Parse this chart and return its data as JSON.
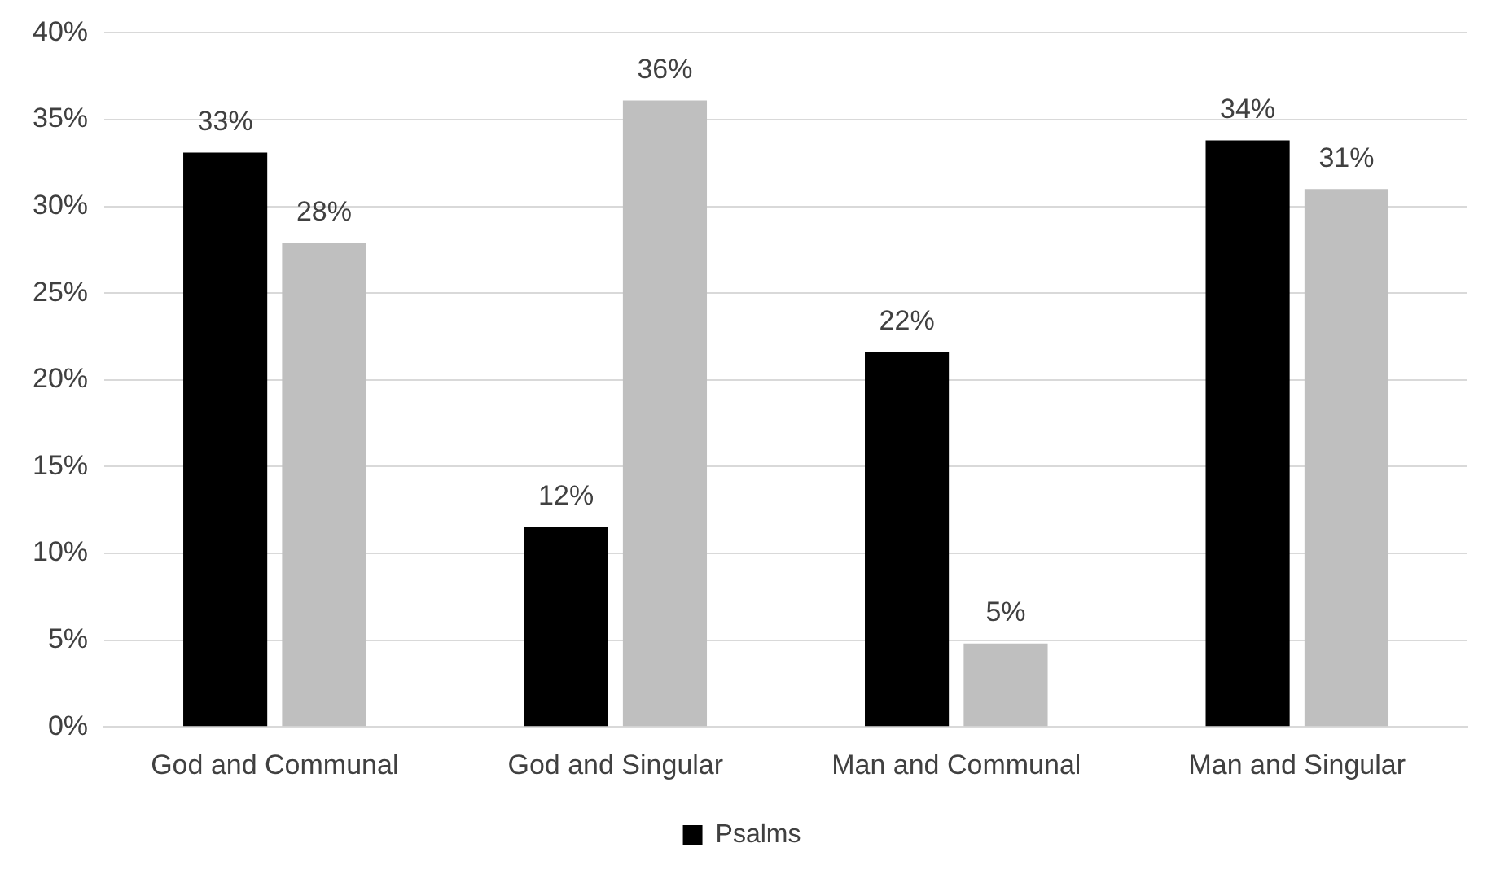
{
  "chart_data": {
    "type": "bar",
    "categories": [
      "God and Communal",
      "God and Singular",
      "Man and Communal",
      "Man and Singular"
    ],
    "series": [
      {
        "name": "Psalms",
        "color": "#000000",
        "values": [
          33.1,
          11.5,
          21.6,
          33.8
        ],
        "value_labels": [
          "33%",
          "12%",
          "22%",
          "34%"
        ]
      },
      {
        "color": "#bfbfbf",
        "values": [
          27.9,
          36.1,
          4.8,
          31.0
        ],
        "value_labels": [
          "28%",
          "36%",
          "5%",
          "31%"
        ]
      }
    ],
    "ylim": [
      0,
      40
    ],
    "yticks": [
      {
        "value": 0,
        "label": "0%"
      },
      {
        "value": 5,
        "label": "5%"
      },
      {
        "value": 10,
        "label": "10%"
      },
      {
        "value": 15,
        "label": "15%"
      },
      {
        "value": 20,
        "label": "20%"
      },
      {
        "value": 25,
        "label": "25%"
      },
      {
        "value": 30,
        "label": "30%"
      },
      {
        "value": 35,
        "label": "35%"
      },
      {
        "value": 40,
        "label": "40%"
      }
    ],
    "grid": "y",
    "legend": "bottom"
  }
}
